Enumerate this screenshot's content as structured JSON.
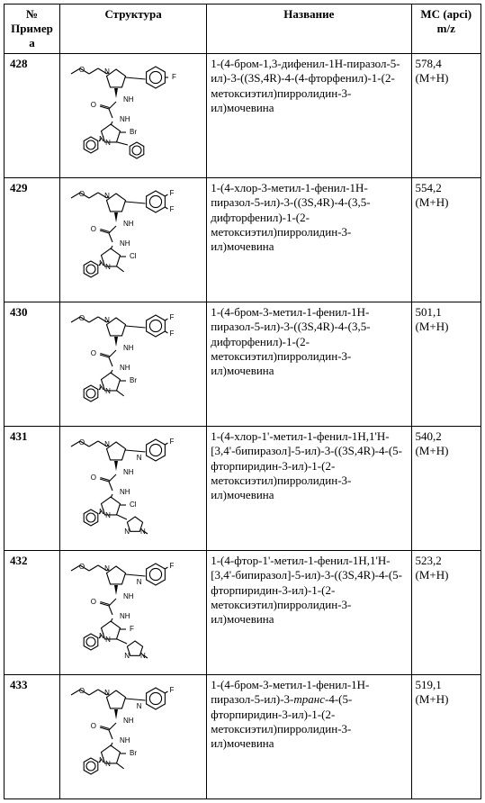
{
  "table": {
    "headers": {
      "example": "№ Примера",
      "structure": "Структура",
      "name": "Название",
      "ms": "МС (apci) m/z"
    },
    "rows": [
      {
        "example": "428",
        "name": "1-(4-бром-1,3-дифенил-1H-пиразол-5-ил)-3-((3S,4R)-4-(4-фторфенил)-1-(2-метоксиэтил)пирролидин-3-ил)мочевина",
        "ms_value": "578,4",
        "ms_ion": "(M+H)",
        "structure": {
          "variant": "A",
          "halogen": "Br",
          "c3_label": "",
          "upper_ring": "phenyl-pF",
          "lower_extra": "phenyl"
        }
      },
      {
        "example": "429",
        "name": "1-(4-хлор-3-метил-1-фенил-1H-пиразол-5-ил)-3-((3S,4R)-4-(3,5-дифторфенил)-1-(2-метоксиэтил)пирролидин-3-ил)мочевина",
        "ms_value": "554,2",
        "ms_ion": "(M+H)",
        "structure": {
          "variant": "A",
          "halogen": "Cl",
          "c3_label": "CH3",
          "upper_ring": "phenyl-35F",
          "lower_extra": ""
        }
      },
      {
        "example": "430",
        "name": "1-(4-бром-3-метил-1-фенил-1H-пиразол-5-ил)-3-((3S,4R)-4-(3,5-дифторфенил)-1-(2-метоксиэтил)пирролидин-3-ил)мочевина",
        "ms_value": "501,1",
        "ms_ion": "(M+H)",
        "structure": {
          "variant": "A",
          "halogen": "Br",
          "c3_label": "CH3",
          "upper_ring": "phenyl-35F",
          "lower_extra": ""
        }
      },
      {
        "example": "431",
        "name": "1-(4-хлор-1'-метил-1-фенил-1H,1'H-[3,4'-бипиразол]-5-ил)-3-((3S,4R)-4-(5-фторпиридин-3-ил)-1-(2-метоксиэтил)пирролидин-3-ил)мочевина",
        "ms_value": "540,2",
        "ms_ion": "(M+H)",
        "structure": {
          "variant": "B",
          "halogen": "Cl",
          "upper_ring": "pyridyl-5F",
          "lower_extra": "N-me-pyrazole"
        }
      },
      {
        "example": "432",
        "name": "1-(4-фтор-1'-метил-1-фенил-1H,1'H-[3,4'-бипиразол]-5-ил)-3-((3S,4R)-4-(5-фторпиридин-3-ил)-1-(2-метоксиэтил)пирролидин-3-ил)мочевина",
        "ms_value": "523,2",
        "ms_ion": "(M+H)",
        "structure": {
          "variant": "B",
          "halogen": "F",
          "upper_ring": "pyridyl-5F",
          "lower_extra": "N-me-pyrazole"
        }
      },
      {
        "example": "433",
        "name_html": "1-(4-бром-3-метил-1-фенил-1H-пиразол-5-ил)-3-<span class=\"italic\">транс</span>-4-(5-фторпиридин-3-ил)-1-(2-метоксиэтил)пирролидин-3-ил)мочевина",
        "ms_value": "519,1",
        "ms_ion": "(M+H)",
        "structure": {
          "variant": "A",
          "halogen": "Br",
          "c3_label": "CH3",
          "upper_ring": "pyridyl-5F",
          "lower_extra": ""
        }
      }
    ],
    "svg_style": {
      "stroke": "#000000",
      "stroke_width": 1.1,
      "font_family": "Arial, Helvetica, sans-serif",
      "font_size": 8
    }
  }
}
